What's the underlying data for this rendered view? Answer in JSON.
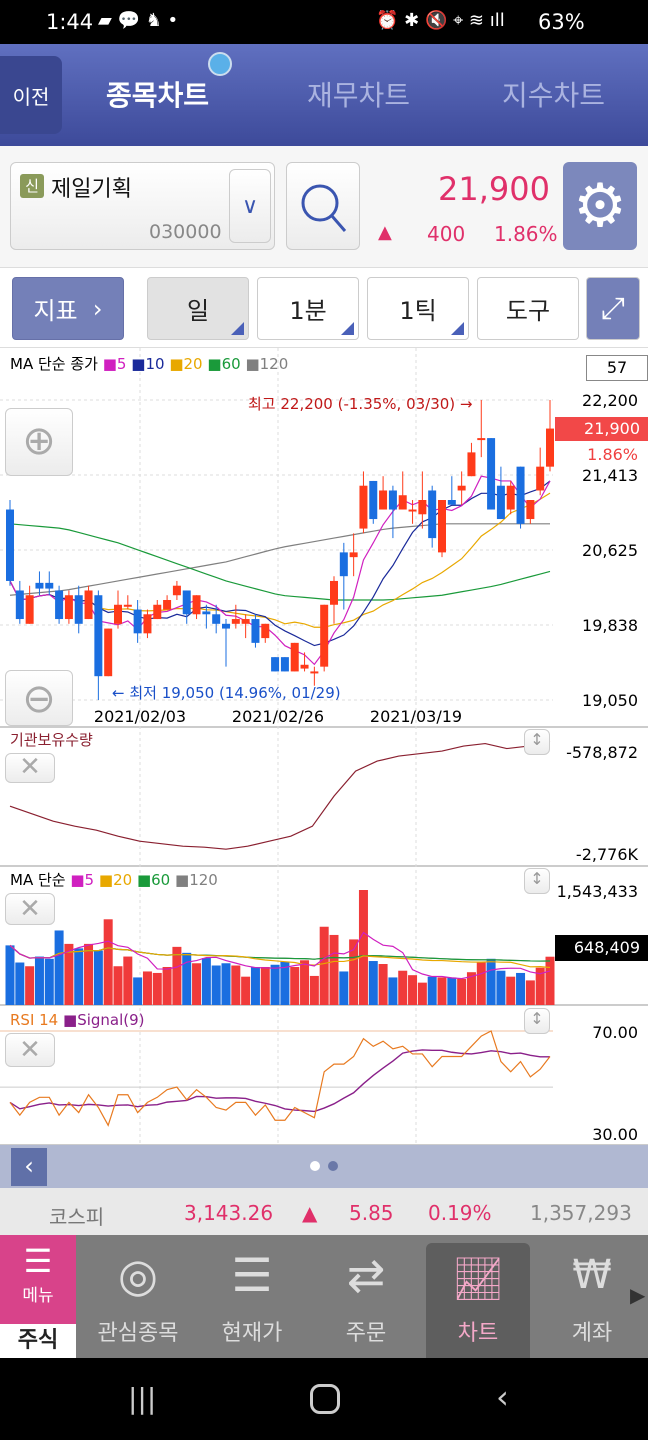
{
  "status": {
    "time": "1:44",
    "battery": "63%"
  },
  "header": {
    "back_label": "이전",
    "tabs": [
      {
        "label": "종목차트",
        "active": true
      },
      {
        "label": "재무차트"
      },
      {
        "label": "지수차트"
      }
    ]
  },
  "stock": {
    "badge": "신",
    "name": "제일기획",
    "code": "030000",
    "price": "21,900",
    "change": "400",
    "change_pct": "1.86%",
    "direction": "up"
  },
  "toolbar": {
    "indicator_label": "지표",
    "period_buttons": [
      "일",
      "1분",
      "1틱"
    ],
    "tools_label": "도구"
  },
  "colors": {
    "up": "#ff3b1a",
    "down": "#1a6ee0",
    "accent": "#e0306a",
    "ma5": "#d020c0",
    "ma10": "#1a2a9a",
    "ma20": "#e8a800",
    "ma60": "#1a9a3a",
    "ma120": "#808080"
  },
  "chart_data": [
    {
      "type": "candlestick",
      "title": "MA 단순 종가",
      "legend": [
        "5",
        "10",
        "20",
        "60",
        "120"
      ],
      "count_label": "57",
      "y_ticks": [
        "22,200",
        "21,413",
        "20,625",
        "19,838",
        "19,050"
      ],
      "ylim": [
        19050,
        22200
      ],
      "x_ticks": [
        "2021/02/03",
        "2021/02/26",
        "2021/03/19"
      ],
      "current_label": "21,900",
      "current_pct": "1.86%",
      "high_annotation": "최고 22,200 (-1.35%, 03/30) →",
      "low_annotation": "← 최저 19,050 (14.96%, 01/29)",
      "candles": [
        [
          21050,
          21150,
          20250,
          20300
        ],
        [
          20200,
          20300,
          19850,
          19900
        ],
        [
          19850,
          20250,
          19850,
          20150
        ],
        [
          20280,
          20400,
          20150,
          20220
        ],
        [
          20280,
          20400,
          20150,
          20220
        ],
        [
          20200,
          20250,
          19850,
          19900
        ],
        [
          19900,
          20200,
          19850,
          20150
        ],
        [
          20150,
          20250,
          19750,
          19850
        ],
        [
          19900,
          20250,
          19900,
          20200
        ],
        [
          20150,
          20200,
          19050,
          19300
        ],
        [
          19300,
          19800,
          19300,
          19800
        ],
        [
          19850,
          20200,
          19800,
          20050
        ],
        [
          20050,
          20150,
          20000,
          20050
        ],
        [
          20000,
          20100,
          19650,
          19750
        ],
        [
          19750,
          20000,
          19700,
          19950
        ],
        [
          19900,
          20100,
          19900,
          20050
        ],
        [
          20000,
          20150,
          20000,
          20100
        ],
        [
          20150,
          20300,
          20100,
          20250
        ],
        [
          20200,
          20200,
          19850,
          19950
        ],
        [
          19950,
          20150,
          19900,
          20150
        ],
        [
          19980,
          20050,
          19800,
          19950
        ],
        [
          19950,
          20050,
          19750,
          19850
        ],
        [
          19850,
          19900,
          19400,
          19800
        ],
        [
          19850,
          20050,
          19800,
          19900
        ],
        [
          19850,
          19950,
          19700,
          19900
        ],
        [
          19900,
          19950,
          19600,
          19650
        ],
        [
          19700,
          19850,
          19650,
          19850
        ],
        [
          19500,
          19500,
          19350,
          19350
        ],
        [
          19500,
          19500,
          19350,
          19350
        ],
        [
          19350,
          19650,
          19350,
          19650
        ],
        [
          19380,
          19550,
          19350,
          19420
        ],
        [
          19350,
          19400,
          19200,
          19350
        ],
        [
          19400,
          20050,
          19350,
          20050
        ],
        [
          20050,
          20350,
          19850,
          20300
        ],
        [
          20600,
          20700,
          20000,
          20350
        ],
        [
          20550,
          20800,
          20350,
          20600
        ],
        [
          20850,
          21450,
          20800,
          21300
        ],
        [
          21350,
          21350,
          20900,
          20950
        ],
        [
          21050,
          21400,
          21050,
          21250
        ],
        [
          21250,
          21300,
          20750,
          21050
        ],
        [
          21050,
          21450,
          21050,
          21200
        ],
        [
          21050,
          21150,
          20900,
          21050
        ],
        [
          21000,
          21450,
          20850,
          21150
        ],
        [
          21250,
          21300,
          20650,
          20750
        ],
        [
          20600,
          21150,
          20550,
          21150
        ],
        [
          21150,
          21400,
          21100,
          21100
        ],
        [
          21250,
          21450,
          21100,
          21300
        ],
        [
          21400,
          21750,
          21400,
          21650
        ],
        [
          21800,
          22200,
          21600,
          21800
        ],
        [
          21800,
          21800,
          21050,
          21050
        ],
        [
          21300,
          21500,
          20950,
          20950
        ],
        [
          21050,
          21350,
          21000,
          21300
        ],
        [
          21500,
          21500,
          20850,
          20900
        ],
        [
          20950,
          21150,
          20900,
          21150
        ],
        [
          21250,
          21700,
          21200,
          21500
        ],
        [
          21500,
          22200,
          21450,
          21900
        ]
      ],
      "ma60": [
        20900,
        20850,
        20700,
        20500,
        20300,
        20150,
        20100,
        20100,
        20150,
        20250,
        20400
      ],
      "ma120": [
        20150,
        20200,
        20300,
        20400,
        20500,
        20650,
        20750,
        20850,
        20900,
        20900,
        20900
      ]
    },
    {
      "type": "line",
      "title": "기관보유수량",
      "y_ticks": [
        "-578,872",
        "-2,776K"
      ],
      "ylim": [
        -2776000,
        -578872
      ],
      "values": [
        -1900,
        -2050,
        -2200,
        -2300,
        -2380,
        -2500,
        -2600,
        -2650,
        -2700,
        -2720,
        -2760,
        -2700,
        -2600,
        -2500,
        -2300,
        -1700,
        -1200,
        -1000,
        -900,
        -850,
        -800,
        -700,
        -650,
        -750,
        -700,
        -600
      ]
    },
    {
      "type": "bar",
      "title": "MA 단순",
      "legend": [
        "5",
        "20",
        "60",
        "120"
      ],
      "y_ticks": [
        "1,543,433"
      ],
      "current_label": "648,409",
      "values": [
        800,
        570,
        520,
        650,
        620,
        1000,
        820,
        760,
        820,
        730,
        1150,
        520,
        650,
        370,
        450,
        430,
        510,
        780,
        700,
        560,
        630,
        530,
        560,
        530,
        380,
        510,
        510,
        540,
        580,
        510,
        600,
        390,
        1050,
        940,
        450,
        880,
        1543,
        590,
        550,
        370,
        460,
        400,
        300,
        380,
        370,
        370,
        350,
        440,
        570,
        620,
        460,
        380,
        430,
        330,
        500,
        648
      ]
    },
    {
      "type": "line",
      "title": "RSI 14",
      "legend": [
        "Signal(9)"
      ],
      "y_ticks": [
        "70.00",
        "30.00"
      ],
      "ylim": [
        30,
        70
      ],
      "values": [
        42,
        37,
        42,
        44,
        44,
        37,
        42,
        38,
        45,
        40,
        33,
        45,
        45,
        38,
        42,
        44,
        47,
        48,
        43,
        47,
        44,
        40,
        39,
        42,
        42,
        37,
        41,
        35,
        35,
        40,
        38,
        36,
        54,
        57,
        57,
        60,
        67,
        64,
        66,
        63,
        64,
        61,
        61,
        56,
        60,
        60,
        60,
        64,
        68,
        70,
        58,
        54,
        58,
        52,
        55,
        60
      ]
    }
  ],
  "kospi": {
    "label": "코스피",
    "value": "3,143.26",
    "change": "5.85",
    "pct": "0.19%",
    "volume": "1,357,293"
  },
  "nav": {
    "menu_label": "메뉴",
    "section_label": "주식",
    "items": [
      "관심종목",
      "현재가",
      "주문",
      "차트",
      "계좌"
    ]
  }
}
